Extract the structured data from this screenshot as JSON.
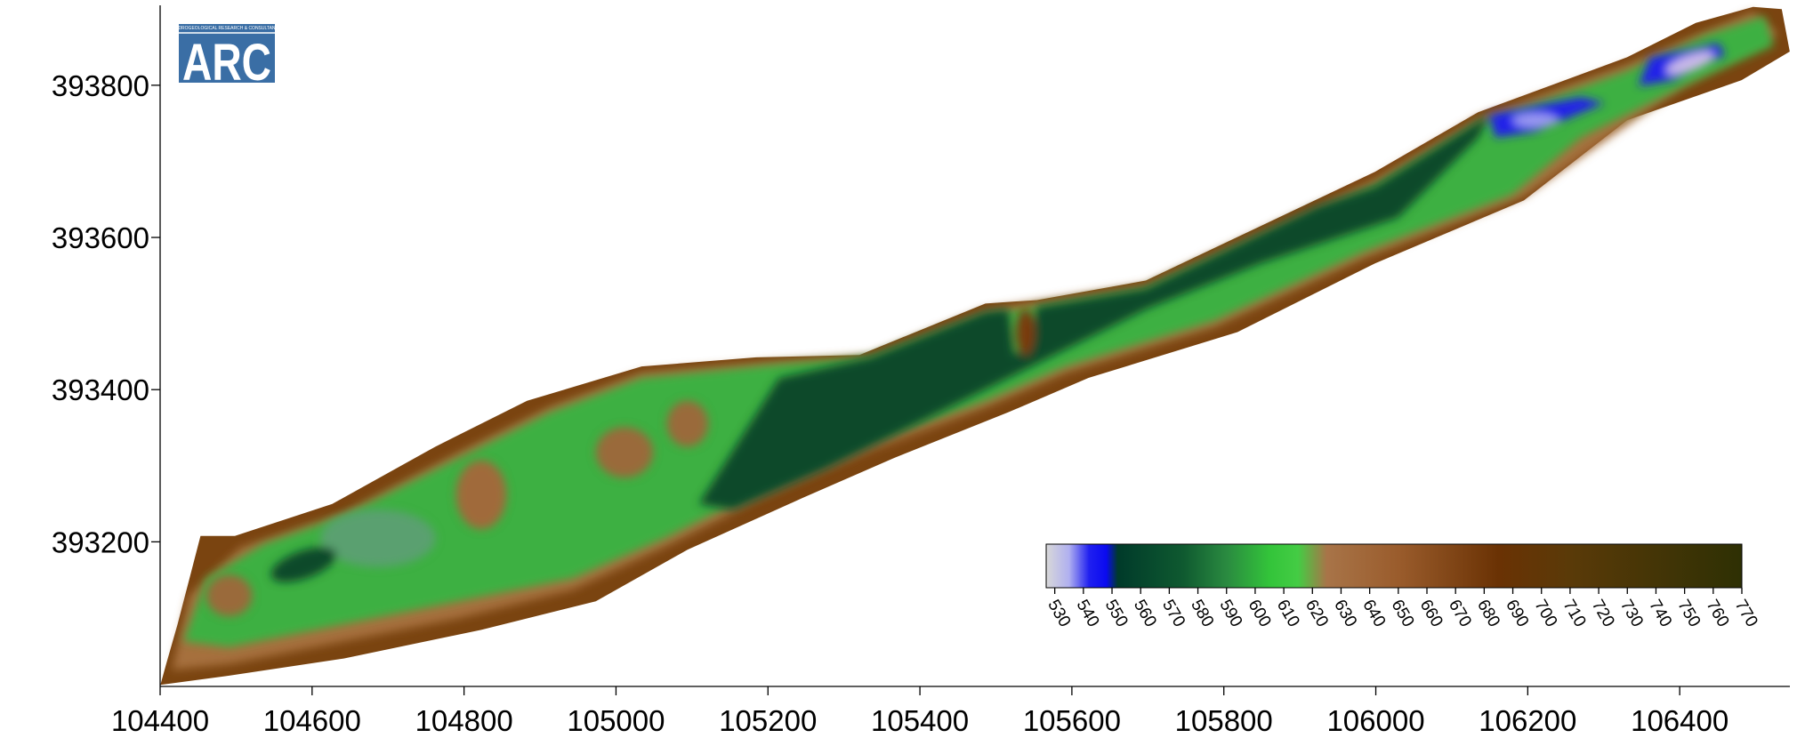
{
  "logo": {
    "text": "ARC",
    "tagline": "HYDROGEOLOGICAL RESEARCH & CONSULTANCY"
  },
  "chart_data": {
    "type": "map",
    "xlim": [
      104400,
      106545
    ],
    "xticks": [
      104400,
      104600,
      104800,
      105000,
      105200,
      105400,
      105600,
      105800,
      106000,
      106200,
      106400
    ],
    "ylim": [
      393010,
      393905
    ],
    "yticks": [
      393200,
      393400,
      393600,
      393800
    ],
    "colorbar": {
      "lim": [
        527,
        770
      ],
      "ticks": [
        530,
        540,
        550,
        560,
        570,
        580,
        590,
        600,
        610,
        620,
        630,
        640,
        650,
        660,
        670,
        680,
        690,
        700,
        710,
        720,
        730,
        740,
        750,
        760,
        770
      ],
      "stops": [
        [
          527,
          "#d8d8d8"
        ],
        [
          535,
          "#b0b0f0"
        ],
        [
          542,
          "#2020f0"
        ],
        [
          548,
          "#0a0af0"
        ],
        [
          552,
          "#003a2a"
        ],
        [
          575,
          "#0f5a30"
        ],
        [
          590,
          "#2a8a40"
        ],
        [
          605,
          "#33c43a"
        ],
        [
          615,
          "#44cc44"
        ],
        [
          625,
          "#a87448"
        ],
        [
          650,
          "#9a5c2c"
        ],
        [
          685,
          "#6a3204"
        ],
        [
          710,
          "#5a3a08"
        ],
        [
          770,
          "#2e3004"
        ]
      ]
    }
  }
}
